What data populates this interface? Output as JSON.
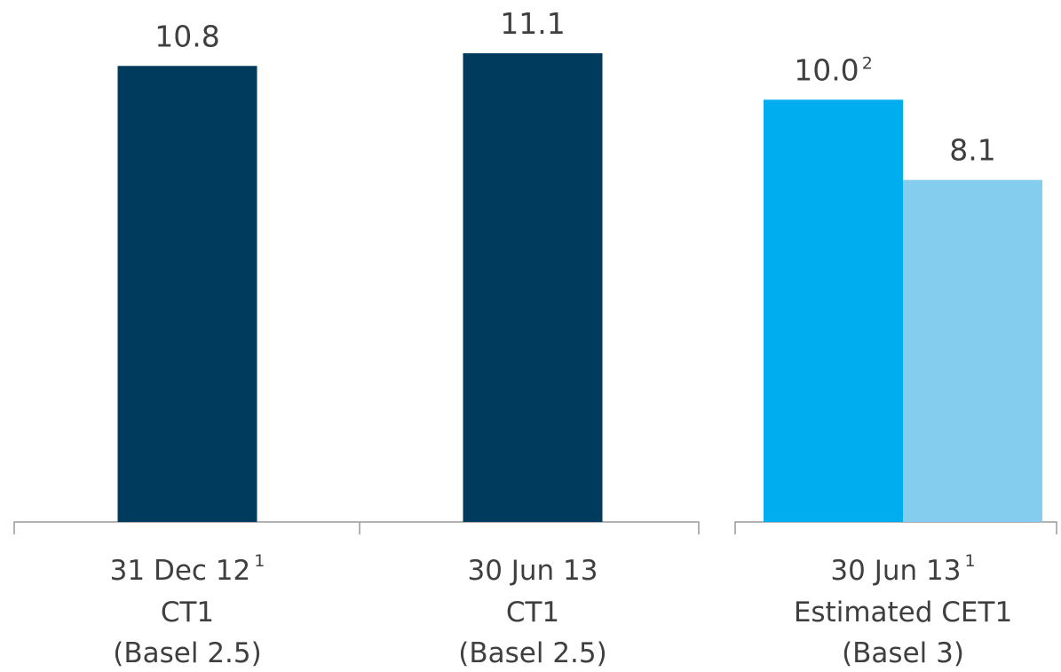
{
  "chart_data": {
    "type": "bar",
    "groups": [
      {
        "category_lines": [
          "31 Dec 12",
          "CT1",
          "(Basel 2.5)"
        ],
        "category_footnote": "1",
        "bars": [
          {
            "value": 10.8,
            "label": "10.8",
            "footnote": "",
            "color": "#003a5d"
          }
        ]
      },
      {
        "category_lines": [
          "30 Jun 13",
          "CT1",
          "(Basel 2.5)"
        ],
        "category_footnote": "",
        "bars": [
          {
            "value": 11.1,
            "label": "11.1",
            "footnote": "",
            "color": "#003a5d"
          }
        ]
      },
      {
        "category_lines": [
          "30 Jun 13",
          "Estimated CET1",
          "(Basel 3)"
        ],
        "category_footnote": "1",
        "bars": [
          {
            "value": 10.0,
            "label": "10.0",
            "footnote": "2",
            "color": "#00aeef"
          },
          {
            "value": 8.1,
            "label": "8.1",
            "footnote": "",
            "color": "#84cdee"
          }
        ]
      }
    ],
    "ylim": [
      0,
      11.1
    ],
    "grid": false,
    "title": "",
    "xlabel": "",
    "ylabel": ""
  }
}
